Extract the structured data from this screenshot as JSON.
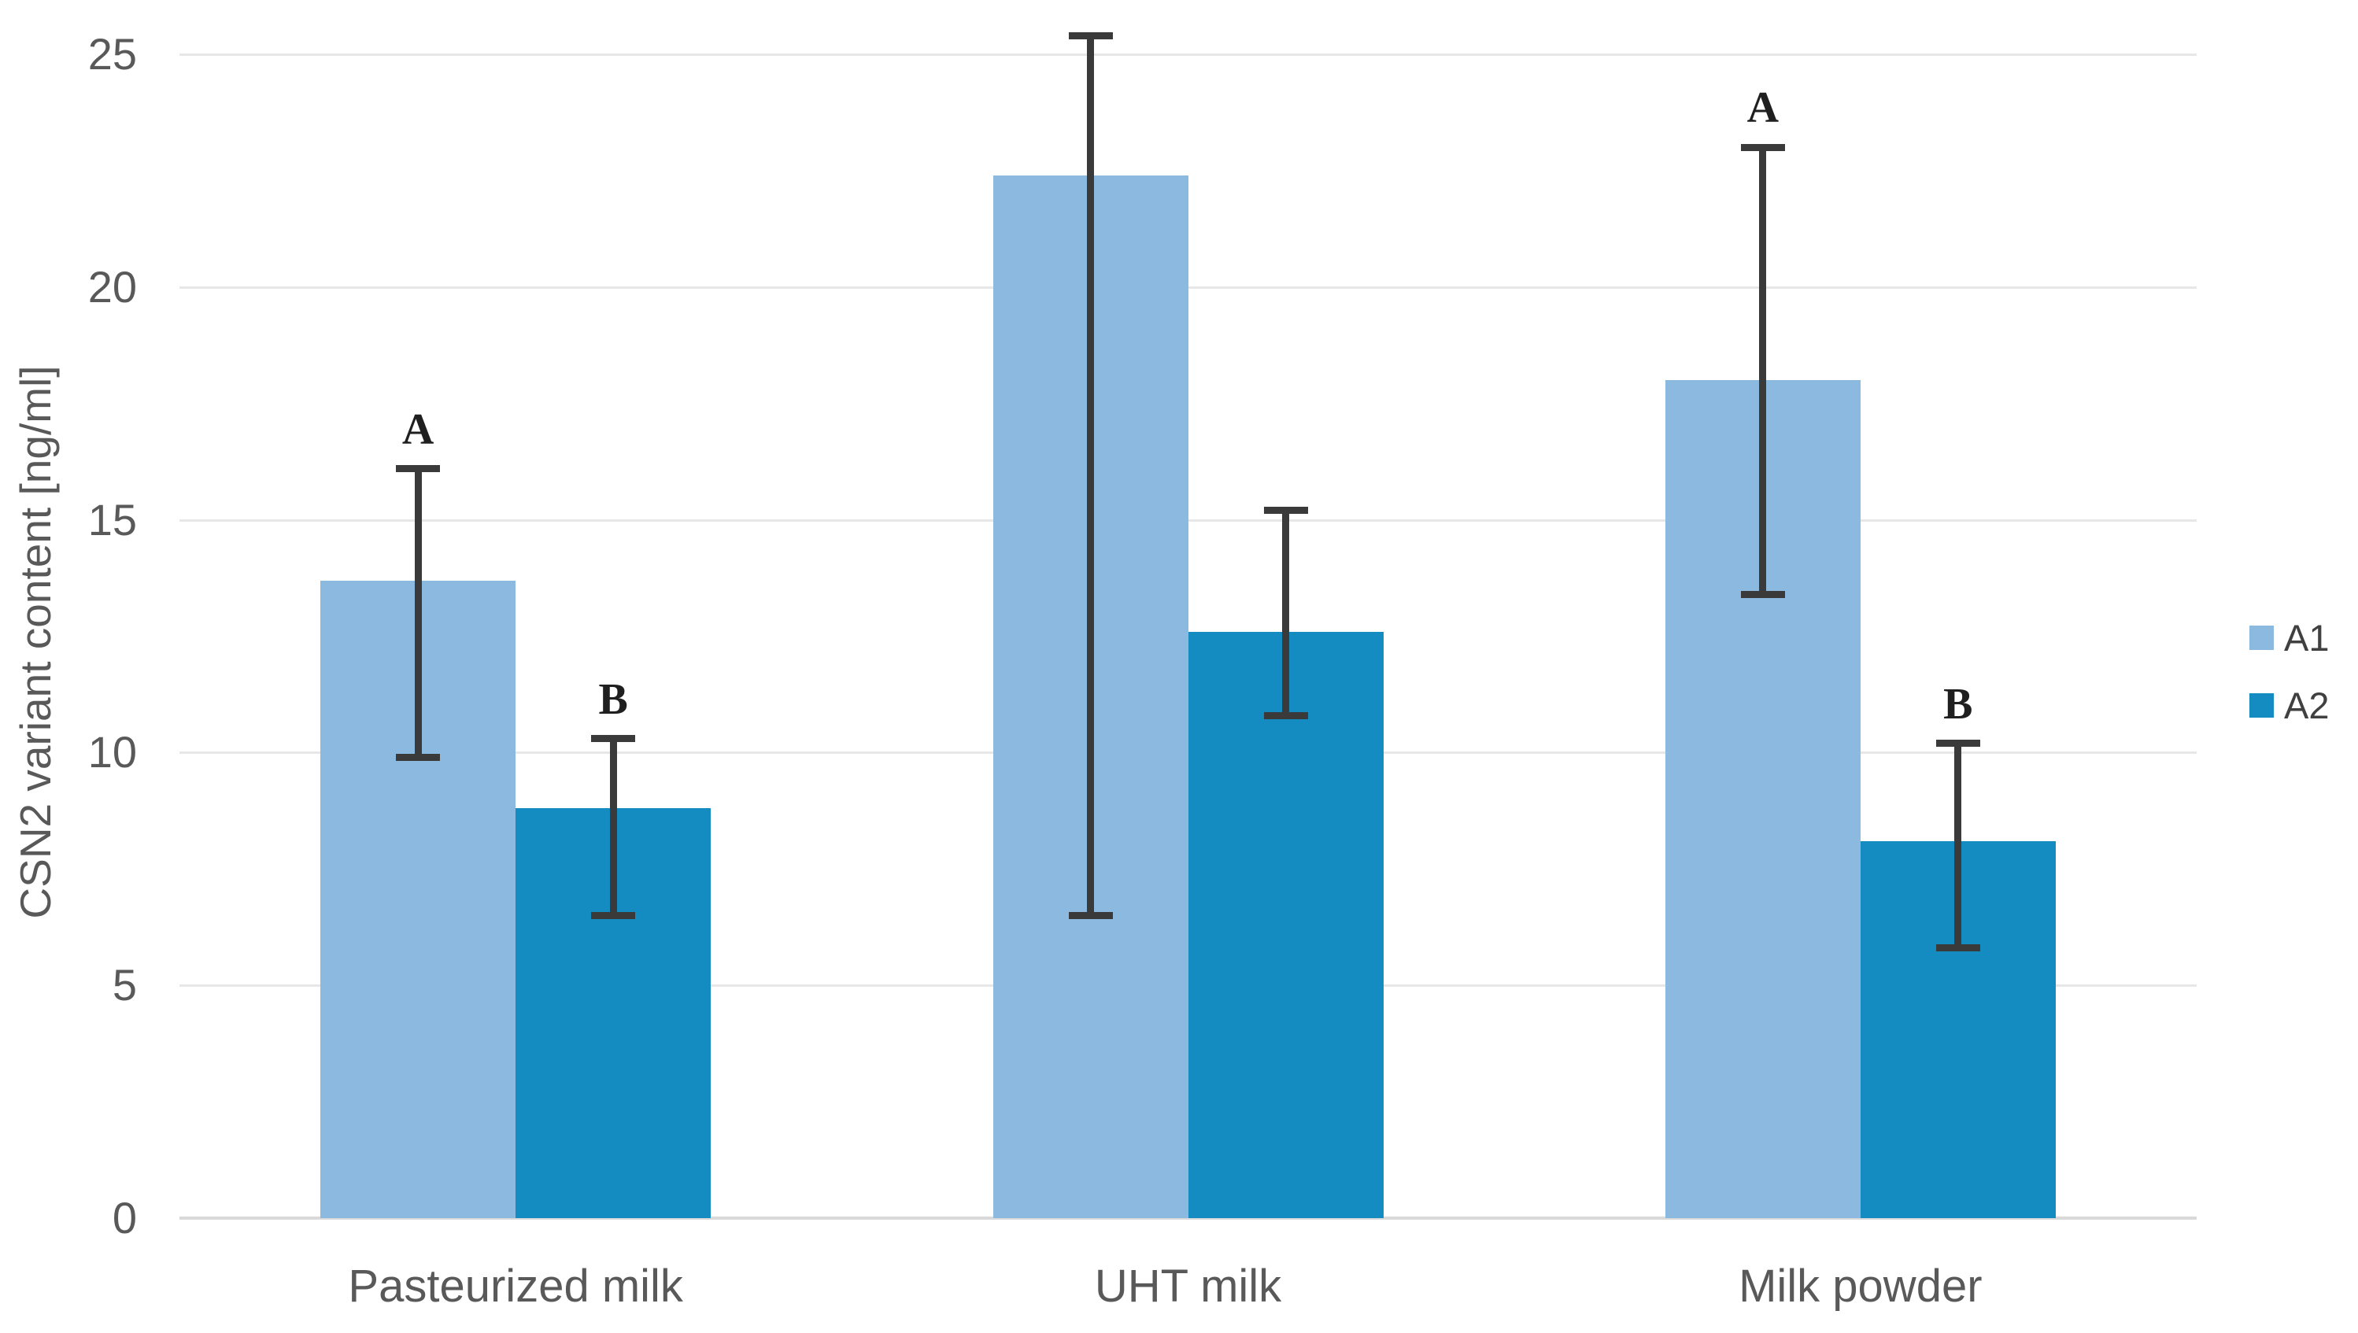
{
  "chart_data": {
    "type": "bar",
    "title": "",
    "xlabel": "",
    "ylabel": "CSN2 variant content [ng/ml]",
    "categories": [
      "Pasteurized milk",
      "UHT milk",
      "Milk powder"
    ],
    "series": [
      {
        "name": "A1",
        "color": "#8BB9E0",
        "values": [
          13.7,
          22.4,
          18.0
        ],
        "error_low": [
          9.9,
          6.5,
          13.4
        ],
        "error_high": [
          16.1,
          25.4,
          23.0
        ],
        "letters": [
          "A",
          "",
          "A"
        ]
      },
      {
        "name": "A2",
        "color": "#148CC2",
        "values": [
          8.8,
          12.6,
          8.1
        ],
        "error_low": [
          6.5,
          10.8,
          5.8
        ],
        "error_high": [
          10.3,
          15.2,
          10.2
        ],
        "letters": [
          "B",
          "",
          "B"
        ]
      }
    ],
    "ylim": [
      0,
      25
    ],
    "yticks": [
      0,
      5,
      10,
      15,
      20,
      25
    ],
    "grid": true,
    "legend_position": "right"
  },
  "colors": {
    "background": "#FFFFFF",
    "gridline": "#E7E7E7",
    "axis_line": "#D9D9D9",
    "tick_text": "#595959",
    "error_bar": "#3A3A3A",
    "letter_text": "#1F1F1F"
  }
}
